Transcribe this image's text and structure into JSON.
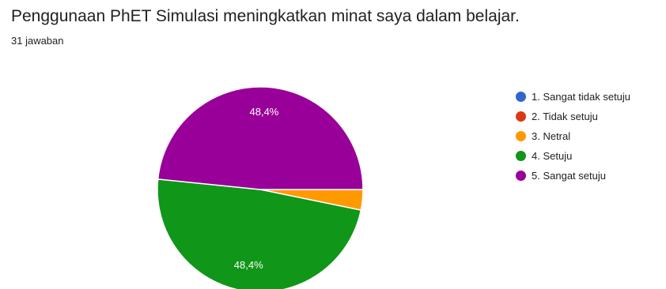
{
  "chart_data": {
    "type": "pie",
    "title": "Penggunaan PhET Simulasi meningkatkan minat saya dalam belajar.",
    "subtitle": "31 jawaban",
    "legend_position": "right",
    "categories": [
      "1. Sangat tidak setuju",
      "2. Tidak setuju",
      "3. Netral",
      "4. Setuju",
      "5. Sangat setuju"
    ],
    "values": [
      0,
      0,
      1,
      15,
      15
    ],
    "colors": [
      "#3366cc",
      "#dc3912",
      "#ff9900",
      "#109618",
      "#990099"
    ],
    "data_labels": [
      "",
      "",
      "",
      "48,4%",
      "48,4%"
    ],
    "start_angle_deg": 90
  }
}
